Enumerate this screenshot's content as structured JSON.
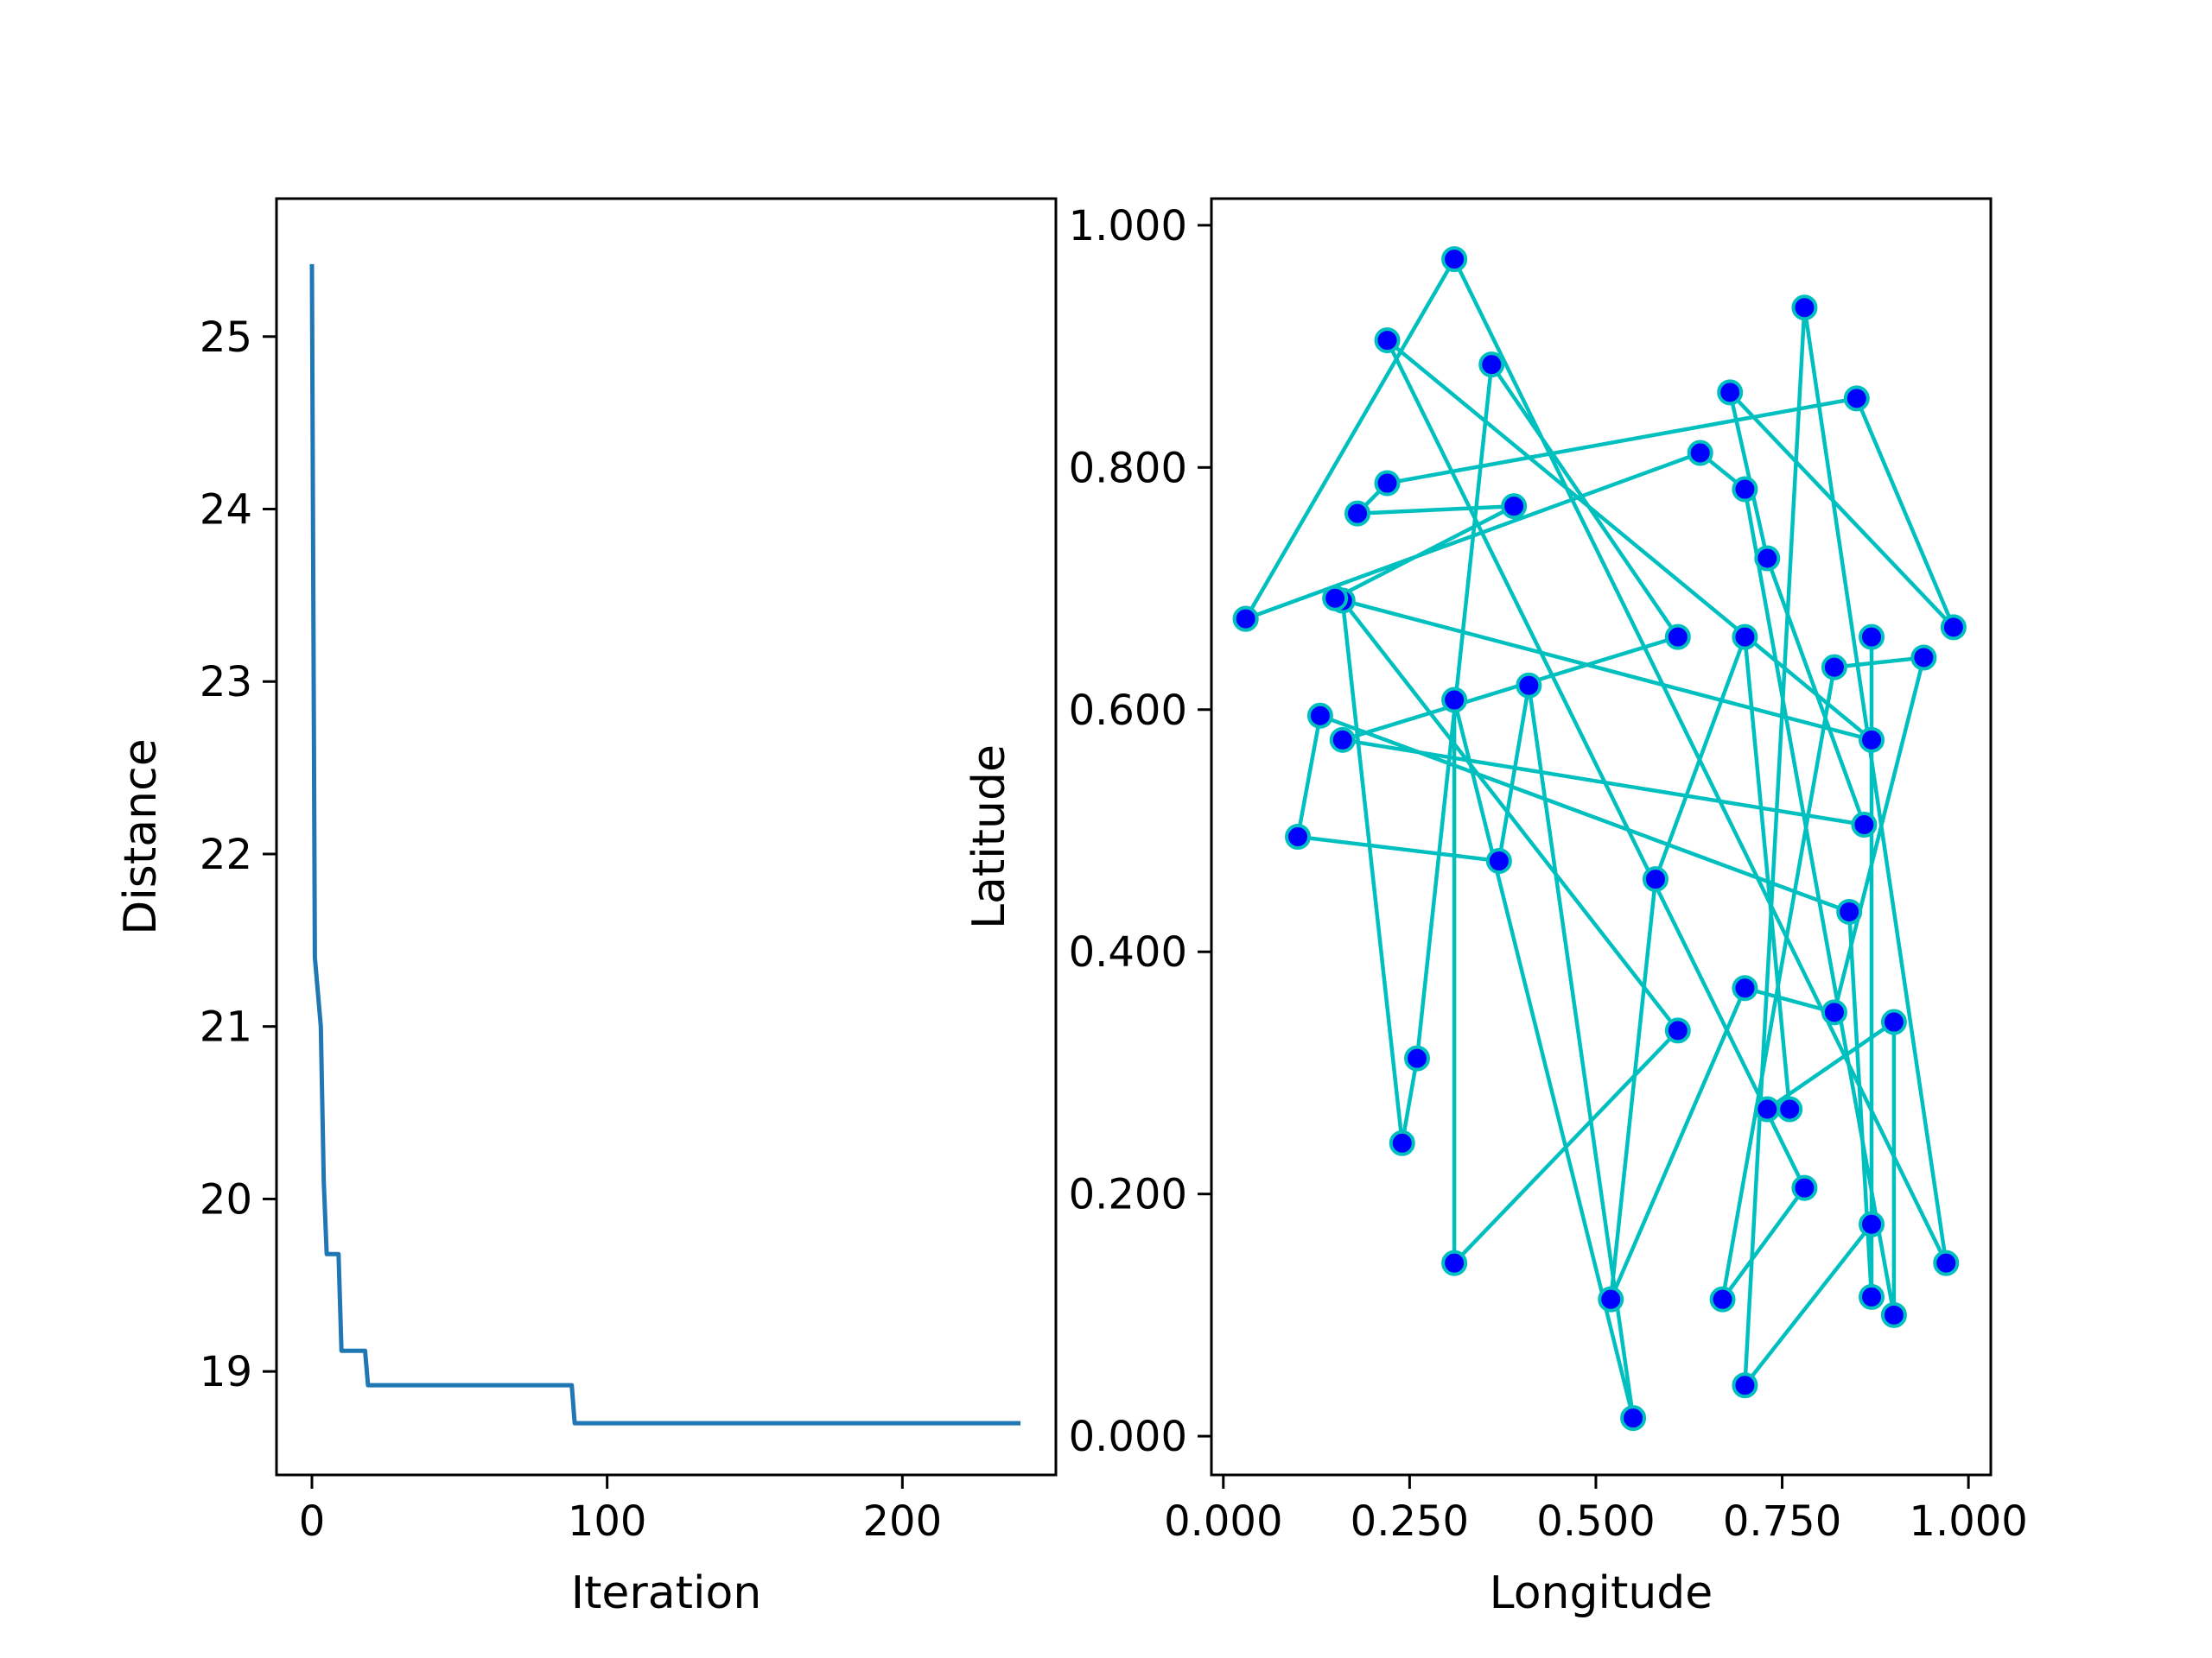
{
  "chart_data": [
    {
      "type": "line",
      "xlabel": "Iteration",
      "ylabel": "Distance",
      "xlim": [
        -12,
        252
      ],
      "ylim": [
        18.4,
        25.8
      ],
      "xticks": [
        0,
        100,
        200
      ],
      "yticks": [
        19,
        20,
        21,
        22,
        23,
        24,
        25
      ],
      "color": "#1f77b4",
      "series": [
        {
          "x": [
            0,
            1,
            3,
            4,
            5,
            9,
            10,
            18,
            19,
            88,
            89,
            240
          ],
          "y": [
            25.42,
            21.4,
            21.0,
            20.1,
            19.68,
            19.68,
            19.12,
            19.12,
            18.92,
            18.92,
            18.7,
            18.7
          ]
        }
      ]
    },
    {
      "type": "scatter",
      "xlabel": "Longitude",
      "ylabel": "Latitude",
      "xlim": [
        -0.016,
        1.03
      ],
      "ylim": [
        -0.032,
        1.022
      ],
      "xticks": [
        "0.000",
        "0.250",
        "0.500",
        "0.750",
        "1.000"
      ],
      "yticks": [
        "0.000",
        "0.200",
        "0.400",
        "0.600",
        "0.800",
        "1.000"
      ],
      "line_color": "#00bfbf",
      "marker_color": "#0000ff",
      "marker_edge": "#00bfbf",
      "route": [
        [
          0.03,
          0.675
        ],
        [
          0.31,
          0.972
        ],
        [
          0.97,
          0.143
        ],
        [
          0.78,
          0.932
        ],
        [
          0.7,
          0.042
        ],
        [
          0.87,
          0.175
        ],
        [
          0.87,
          0.66
        ],
        [
          0.87,
          0.115
        ],
        [
          0.84,
          0.433
        ],
        [
          0.13,
          0.595
        ],
        [
          0.1,
          0.495
        ],
        [
          0.37,
          0.475
        ],
        [
          0.41,
          0.62
        ],
        [
          0.55,
          0.015
        ],
        [
          0.31,
          0.608
        ],
        [
          0.31,
          0.143
        ],
        [
          0.61,
          0.335
        ],
        [
          0.16,
          0.69
        ],
        [
          0.24,
          0.242
        ],
        [
          0.26,
          0.312
        ],
        [
          0.36,
          0.885
        ],
        [
          0.61,
          0.66
        ],
        [
          0.16,
          0.575
        ],
        [
          0.86,
          0.505
        ],
        [
          0.73,
          0.725
        ],
        [
          0.68,
          0.862
        ],
        [
          0.98,
          0.668
        ],
        [
          0.85,
          0.857
        ],
        [
          0.22,
          0.787
        ],
        [
          0.18,
          0.762
        ],
        [
          0.39,
          0.768
        ],
        [
          0.15,
          0.692
        ],
        [
          0.87,
          0.575
        ],
        [
          0.22,
          0.905
        ],
        [
          0.78,
          0.205
        ],
        [
          0.67,
          0.113
        ],
        [
          0.82,
          0.635
        ],
        [
          0.94,
          0.643
        ],
        [
          0.82,
          0.35
        ],
        [
          0.7,
          0.37
        ],
        [
          0.52,
          0.113
        ],
        [
          0.58,
          0.46
        ],
        [
          0.7,
          0.66
        ],
        [
          0.76,
          0.27
        ],
        [
          0.73,
          0.27
        ],
        [
          0.9,
          0.342
        ],
        [
          0.9,
          0.1
        ],
        [
          0.7,
          0.782
        ],
        [
          0.64,
          0.812
        ],
        [
          0.03,
          0.675
        ]
      ]
    }
  ]
}
